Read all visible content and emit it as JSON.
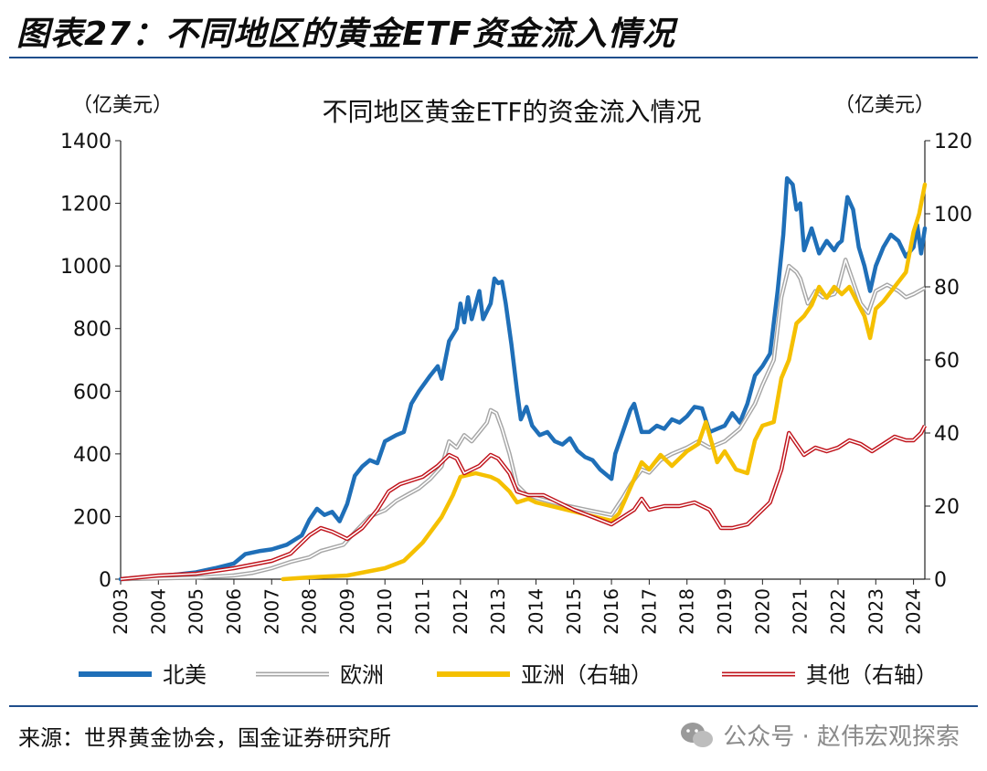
{
  "figure": {
    "title": "图表27：不同地区的黄金ETF资金流入情况",
    "source": "来源：世界黄金协会，国金证券研究所",
    "watermark": "公众号 · 赵伟宏观探索",
    "watermark_icon": "wechat-icon"
  },
  "chart_data": {
    "type": "line",
    "title": "不同地区黄金ETF的资金流入情况",
    "left_unit": "（亿美元）",
    "right_unit": "（亿美元）",
    "x_ticks": [
      "2003",
      "2004",
      "2005",
      "2006",
      "2007",
      "2008",
      "2009",
      "2010",
      "2011",
      "2012",
      "2013",
      "2014",
      "2015",
      "2016",
      "2017",
      "2018",
      "2019",
      "2020",
      "2021",
      "2022",
      "2023",
      "2024"
    ],
    "x_range": [
      2003.0,
      2024.3
    ],
    "left_axis": {
      "min": 0,
      "max": 1400,
      "ticks": [
        "0",
        "200",
        "400",
        "600",
        "800",
        "1000",
        "1200",
        "1400"
      ]
    },
    "right_axis": {
      "min": 0,
      "max": 120,
      "ticks": [
        "0",
        "20",
        "40",
        "60",
        "80",
        "100",
        "120"
      ]
    },
    "series": [
      {
        "name": "北美",
        "axis": "left",
        "color": "#1f6fb8",
        "style": "solid",
        "points": [
          [
            2003.0,
            0
          ],
          [
            2003.5,
            5
          ],
          [
            2004.0,
            10
          ],
          [
            2004.5,
            15
          ],
          [
            2005.0,
            22
          ],
          [
            2005.5,
            35
          ],
          [
            2006.0,
            50
          ],
          [
            2006.3,
            80
          ],
          [
            2006.7,
            90
          ],
          [
            2007.0,
            95
          ],
          [
            2007.4,
            110
          ],
          [
            2007.8,
            140
          ],
          [
            2008.0,
            190
          ],
          [
            2008.2,
            225
          ],
          [
            2008.4,
            205
          ],
          [
            2008.6,
            215
          ],
          [
            2008.8,
            185
          ],
          [
            2009.0,
            240
          ],
          [
            2009.2,
            330
          ],
          [
            2009.4,
            360
          ],
          [
            2009.6,
            380
          ],
          [
            2009.8,
            370
          ],
          [
            2010.0,
            440
          ],
          [
            2010.3,
            460
          ],
          [
            2010.5,
            470
          ],
          [
            2010.7,
            560
          ],
          [
            2010.9,
            600
          ],
          [
            2011.2,
            650
          ],
          [
            2011.4,
            680
          ],
          [
            2011.5,
            640
          ],
          [
            2011.7,
            760
          ],
          [
            2011.9,
            800
          ],
          [
            2012.0,
            880
          ],
          [
            2012.1,
            820
          ],
          [
            2012.2,
            900
          ],
          [
            2012.3,
            830
          ],
          [
            2012.5,
            920
          ],
          [
            2012.6,
            830
          ],
          [
            2012.8,
            880
          ],
          [
            2012.9,
            960
          ],
          [
            2013.0,
            945
          ],
          [
            2013.1,
            950
          ],
          [
            2013.2,
            880
          ],
          [
            2013.35,
            750
          ],
          [
            2013.5,
            600
          ],
          [
            2013.6,
            510
          ],
          [
            2013.75,
            550
          ],
          [
            2013.9,
            490
          ],
          [
            2014.1,
            460
          ],
          [
            2014.3,
            470
          ],
          [
            2014.5,
            440
          ],
          [
            2014.7,
            430
          ],
          [
            2014.9,
            450
          ],
          [
            2015.1,
            410
          ],
          [
            2015.3,
            390
          ],
          [
            2015.5,
            380
          ],
          [
            2015.7,
            350
          ],
          [
            2015.9,
            330
          ],
          [
            2016.0,
            320
          ],
          [
            2016.1,
            400
          ],
          [
            2016.3,
            470
          ],
          [
            2016.5,
            540
          ],
          [
            2016.6,
            560
          ],
          [
            2016.8,
            470
          ],
          [
            2017.0,
            470
          ],
          [
            2017.2,
            490
          ],
          [
            2017.4,
            480
          ],
          [
            2017.6,
            510
          ],
          [
            2017.8,
            500
          ],
          [
            2018.0,
            520
          ],
          [
            2018.2,
            550
          ],
          [
            2018.4,
            545
          ],
          [
            2018.6,
            470
          ],
          [
            2018.8,
            480
          ],
          [
            2019.0,
            490
          ],
          [
            2019.2,
            530
          ],
          [
            2019.4,
            500
          ],
          [
            2019.6,
            560
          ],
          [
            2019.8,
            650
          ],
          [
            2020.0,
            680
          ],
          [
            2020.2,
            720
          ],
          [
            2020.4,
            920
          ],
          [
            2020.55,
            1100
          ],
          [
            2020.65,
            1280
          ],
          [
            2020.8,
            1260
          ],
          [
            2020.9,
            1180
          ],
          [
            2021.0,
            1200
          ],
          [
            2021.1,
            1050
          ],
          [
            2021.3,
            1120
          ],
          [
            2021.5,
            1040
          ],
          [
            2021.7,
            1080
          ],
          [
            2021.9,
            1050
          ],
          [
            2022.0,
            1070
          ],
          [
            2022.1,
            1080
          ],
          [
            2022.25,
            1220
          ],
          [
            2022.4,
            1180
          ],
          [
            2022.55,
            1060
          ],
          [
            2022.7,
            1000
          ],
          [
            2022.85,
            920
          ],
          [
            2023.0,
            1000
          ],
          [
            2023.2,
            1060
          ],
          [
            2023.4,
            1100
          ],
          [
            2023.6,
            1080
          ],
          [
            2023.8,
            1030
          ],
          [
            2024.0,
            1060
          ],
          [
            2024.1,
            1130
          ],
          [
            2024.2,
            1040
          ],
          [
            2024.3,
            1120
          ]
        ]
      },
      {
        "name": "欧洲",
        "axis": "left",
        "color": "#a6a6a6",
        "style": "double",
        "points": [
          [
            2003.0,
            0
          ],
          [
            2004.0,
            2
          ],
          [
            2005.0,
            5
          ],
          [
            2006.0,
            12
          ],
          [
            2006.5,
            20
          ],
          [
            2007.0,
            35
          ],
          [
            2007.5,
            55
          ],
          [
            2008.0,
            70
          ],
          [
            2008.3,
            90
          ],
          [
            2008.6,
            100
          ],
          [
            2008.9,
            110
          ],
          [
            2009.2,
            150
          ],
          [
            2009.6,
            200
          ],
          [
            2010.0,
            220
          ],
          [
            2010.3,
            250
          ],
          [
            2010.6,
            270
          ],
          [
            2010.9,
            290
          ],
          [
            2011.2,
            320
          ],
          [
            2011.5,
            360
          ],
          [
            2011.7,
            440
          ],
          [
            2011.9,
            420
          ],
          [
            2012.1,
            460
          ],
          [
            2012.3,
            440
          ],
          [
            2012.5,
            470
          ],
          [
            2012.7,
            500
          ],
          [
            2012.8,
            540
          ],
          [
            2012.95,
            530
          ],
          [
            2013.1,
            480
          ],
          [
            2013.3,
            400
          ],
          [
            2013.5,
            300
          ],
          [
            2013.75,
            270
          ],
          [
            2014.0,
            260
          ],
          [
            2014.3,
            250
          ],
          [
            2014.6,
            240
          ],
          [
            2015.0,
            230
          ],
          [
            2015.4,
            220
          ],
          [
            2015.8,
            210
          ],
          [
            2016.0,
            205
          ],
          [
            2016.3,
            260
          ],
          [
            2016.5,
            300
          ],
          [
            2016.8,
            350
          ],
          [
            2017.0,
            340
          ],
          [
            2017.3,
            380
          ],
          [
            2017.6,
            400
          ],
          [
            2018.0,
            420
          ],
          [
            2018.3,
            440
          ],
          [
            2018.6,
            420
          ],
          [
            2019.0,
            440
          ],
          [
            2019.4,
            480
          ],
          [
            2019.8,
            560
          ],
          [
            2020.0,
            620
          ],
          [
            2020.3,
            700
          ],
          [
            2020.5,
            900
          ],
          [
            2020.7,
            1000
          ],
          [
            2020.9,
            980
          ],
          [
            2021.0,
            960
          ],
          [
            2021.2,
            880
          ],
          [
            2021.4,
            920
          ],
          [
            2021.6,
            900
          ],
          [
            2021.9,
            910
          ],
          [
            2022.0,
            930
          ],
          [
            2022.2,
            1020
          ],
          [
            2022.4,
            950
          ],
          [
            2022.6,
            880
          ],
          [
            2022.8,
            850
          ],
          [
            2023.0,
            920
          ],
          [
            2023.3,
            940
          ],
          [
            2023.6,
            920
          ],
          [
            2023.8,
            900
          ],
          [
            2024.0,
            910
          ],
          [
            2024.3,
            930
          ]
        ]
      },
      {
        "name": "亚洲（右轴）",
        "axis": "right",
        "color": "#f5c000",
        "style": "solid",
        "points": [
          [
            2007.3,
            0
          ],
          [
            2008.0,
            0.5
          ],
          [
            2009.0,
            1
          ],
          [
            2010.0,
            3
          ],
          [
            2010.5,
            5
          ],
          [
            2011.0,
            10
          ],
          [
            2011.5,
            17
          ],
          [
            2011.8,
            23
          ],
          [
            2012.0,
            28
          ],
          [
            2012.4,
            29
          ],
          [
            2012.8,
            28
          ],
          [
            2013.0,
            27
          ],
          [
            2013.3,
            24
          ],
          [
            2013.5,
            21
          ],
          [
            2013.8,
            22
          ],
          [
            2014.0,
            21
          ],
          [
            2014.4,
            20
          ],
          [
            2014.8,
            19
          ],
          [
            2015.2,
            18
          ],
          [
            2015.6,
            17
          ],
          [
            2016.0,
            16
          ],
          [
            2016.2,
            18
          ],
          [
            2016.5,
            25
          ],
          [
            2016.8,
            32
          ],
          [
            2017.0,
            30
          ],
          [
            2017.3,
            34
          ],
          [
            2017.6,
            31
          ],
          [
            2018.0,
            35
          ],
          [
            2018.3,
            37
          ],
          [
            2018.5,
            43
          ],
          [
            2018.8,
            32
          ],
          [
            2019.0,
            35
          ],
          [
            2019.3,
            30
          ],
          [
            2019.6,
            29
          ],
          [
            2019.8,
            38
          ],
          [
            2020.0,
            42
          ],
          [
            2020.3,
            43
          ],
          [
            2020.5,
            55
          ],
          [
            2020.7,
            60
          ],
          [
            2020.9,
            70
          ],
          [
            2021.1,
            72
          ],
          [
            2021.3,
            75
          ],
          [
            2021.5,
            80
          ],
          [
            2021.7,
            77
          ],
          [
            2021.9,
            80
          ],
          [
            2022.1,
            78
          ],
          [
            2022.3,
            80
          ],
          [
            2022.5,
            76
          ],
          [
            2022.7,
            72
          ],
          [
            2022.85,
            66
          ],
          [
            2023.0,
            74
          ],
          [
            2023.2,
            76
          ],
          [
            2023.5,
            80
          ],
          [
            2023.8,
            84
          ],
          [
            2024.0,
            95
          ],
          [
            2024.15,
            100
          ],
          [
            2024.3,
            108
          ]
        ]
      },
      {
        "name": "其他（右轴）",
        "axis": "right",
        "color": "#c0141c",
        "style": "double",
        "points": [
          [
            2003.0,
            0
          ],
          [
            2004.0,
            1
          ],
          [
            2005.0,
            1.5
          ],
          [
            2006.0,
            3
          ],
          [
            2006.5,
            4
          ],
          [
            2007.0,
            5
          ],
          [
            2007.5,
            7
          ],
          [
            2008.0,
            12
          ],
          [
            2008.3,
            14
          ],
          [
            2008.6,
            13
          ],
          [
            2009.0,
            11
          ],
          [
            2009.4,
            14
          ],
          [
            2009.8,
            19
          ],
          [
            2010.1,
            24
          ],
          [
            2010.4,
            26
          ],
          [
            2010.7,
            27
          ],
          [
            2011.0,
            28
          ],
          [
            2011.4,
            31
          ],
          [
            2011.7,
            34
          ],
          [
            2011.9,
            33
          ],
          [
            2012.1,
            29
          ],
          [
            2012.5,
            31
          ],
          [
            2012.8,
            34
          ],
          [
            2013.0,
            33
          ],
          [
            2013.3,
            29
          ],
          [
            2013.5,
            24
          ],
          [
            2013.8,
            23
          ],
          [
            2014.2,
            23
          ],
          [
            2014.6,
            21
          ],
          [
            2015.0,
            19
          ],
          [
            2015.5,
            17
          ],
          [
            2016.0,
            15
          ],
          [
            2016.3,
            17
          ],
          [
            2016.6,
            19
          ],
          [
            2016.8,
            22
          ],
          [
            2017.0,
            19
          ],
          [
            2017.4,
            20
          ],
          [
            2017.8,
            20
          ],
          [
            2018.2,
            21
          ],
          [
            2018.6,
            19
          ],
          [
            2018.9,
            14
          ],
          [
            2019.2,
            14
          ],
          [
            2019.6,
            15
          ],
          [
            2019.9,
            18
          ],
          [
            2020.2,
            21
          ],
          [
            2020.5,
            30
          ],
          [
            2020.7,
            40
          ],
          [
            2020.9,
            37
          ],
          [
            2021.1,
            34
          ],
          [
            2021.4,
            36
          ],
          [
            2021.7,
            35
          ],
          [
            2022.0,
            36
          ],
          [
            2022.3,
            38
          ],
          [
            2022.6,
            37
          ],
          [
            2022.9,
            35
          ],
          [
            2023.2,
            37
          ],
          [
            2023.5,
            39
          ],
          [
            2023.8,
            38
          ],
          [
            2024.0,
            38
          ],
          [
            2024.2,
            40
          ],
          [
            2024.3,
            42
          ]
        ]
      }
    ]
  }
}
